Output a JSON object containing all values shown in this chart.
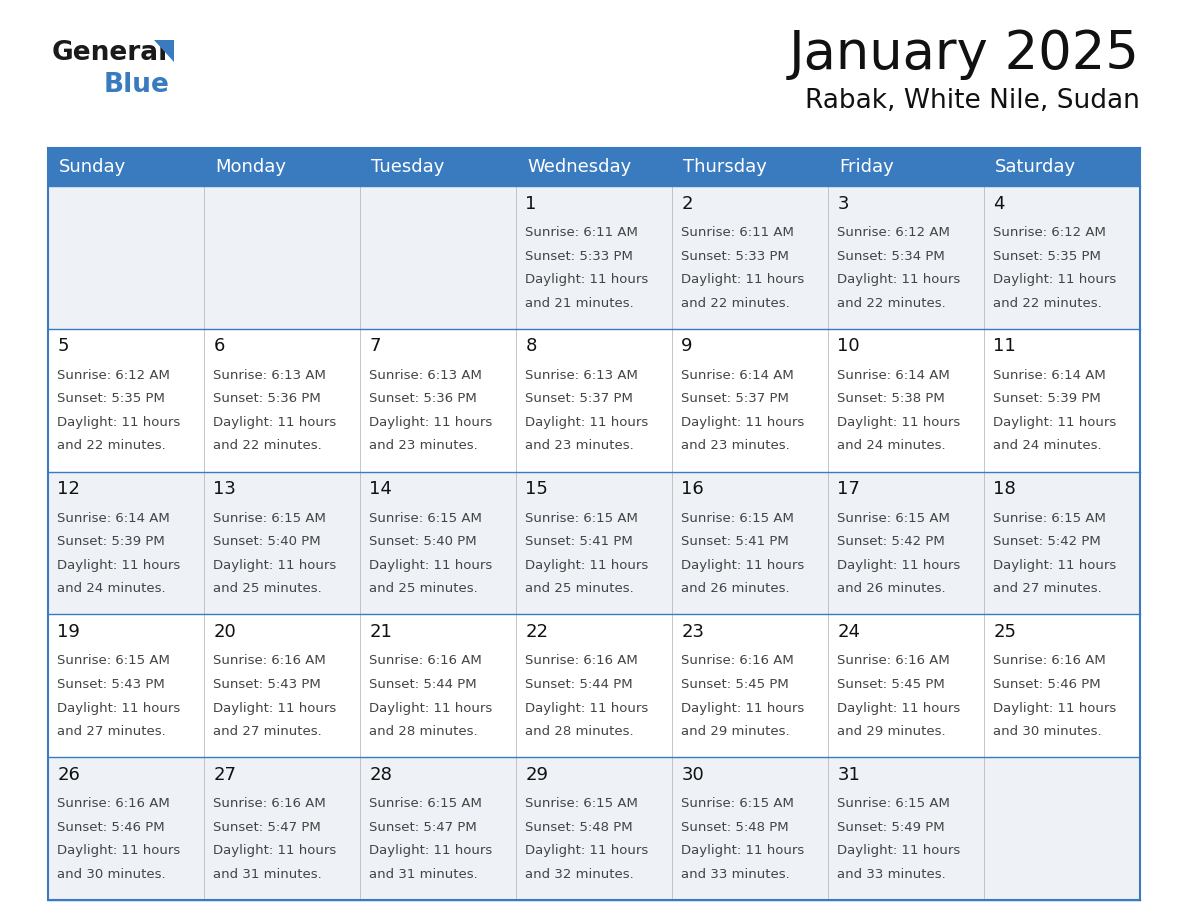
{
  "title": "January 2025",
  "subtitle": "Rabak, White Nile, Sudan",
  "header_bg_color": "#3a7bbf",
  "header_text_color": "#ffffff",
  "cell_bg_light": "#eef2f7",
  "cell_bg_white": "#ffffff",
  "day_headers": [
    "Sunday",
    "Monday",
    "Tuesday",
    "Wednesday",
    "Thursday",
    "Friday",
    "Saturday"
  ],
  "calendar_data": [
    [
      {
        "day": "",
        "sunrise": "",
        "sunset": "",
        "daylight": ""
      },
      {
        "day": "",
        "sunrise": "",
        "sunset": "",
        "daylight": ""
      },
      {
        "day": "",
        "sunrise": "",
        "sunset": "",
        "daylight": ""
      },
      {
        "day": "1",
        "sunrise": "6:11 AM",
        "sunset": "5:33 PM",
        "daylight": "11 hours and 21 minutes."
      },
      {
        "day": "2",
        "sunrise": "6:11 AM",
        "sunset": "5:33 PM",
        "daylight": "11 hours and 22 minutes."
      },
      {
        "day": "3",
        "sunrise": "6:12 AM",
        "sunset": "5:34 PM",
        "daylight": "11 hours and 22 minutes."
      },
      {
        "day": "4",
        "sunrise": "6:12 AM",
        "sunset": "5:35 PM",
        "daylight": "11 hours and 22 minutes."
      }
    ],
    [
      {
        "day": "5",
        "sunrise": "6:12 AM",
        "sunset": "5:35 PM",
        "daylight": "11 hours and 22 minutes."
      },
      {
        "day": "6",
        "sunrise": "6:13 AM",
        "sunset": "5:36 PM",
        "daylight": "11 hours and 22 minutes."
      },
      {
        "day": "7",
        "sunrise": "6:13 AM",
        "sunset": "5:36 PM",
        "daylight": "11 hours and 23 minutes."
      },
      {
        "day": "8",
        "sunrise": "6:13 AM",
        "sunset": "5:37 PM",
        "daylight": "11 hours and 23 minutes."
      },
      {
        "day": "9",
        "sunrise": "6:14 AM",
        "sunset": "5:37 PM",
        "daylight": "11 hours and 23 minutes."
      },
      {
        "day": "10",
        "sunrise": "6:14 AM",
        "sunset": "5:38 PM",
        "daylight": "11 hours and 24 minutes."
      },
      {
        "day": "11",
        "sunrise": "6:14 AM",
        "sunset": "5:39 PM",
        "daylight": "11 hours and 24 minutes."
      }
    ],
    [
      {
        "day": "12",
        "sunrise": "6:14 AM",
        "sunset": "5:39 PM",
        "daylight": "11 hours and 24 minutes."
      },
      {
        "day": "13",
        "sunrise": "6:15 AM",
        "sunset": "5:40 PM",
        "daylight": "11 hours and 25 minutes."
      },
      {
        "day": "14",
        "sunrise": "6:15 AM",
        "sunset": "5:40 PM",
        "daylight": "11 hours and 25 minutes."
      },
      {
        "day": "15",
        "sunrise": "6:15 AM",
        "sunset": "5:41 PM",
        "daylight": "11 hours and 25 minutes."
      },
      {
        "day": "16",
        "sunrise": "6:15 AM",
        "sunset": "5:41 PM",
        "daylight": "11 hours and 26 minutes."
      },
      {
        "day": "17",
        "sunrise": "6:15 AM",
        "sunset": "5:42 PM",
        "daylight": "11 hours and 26 minutes."
      },
      {
        "day": "18",
        "sunrise": "6:15 AM",
        "sunset": "5:42 PM",
        "daylight": "11 hours and 27 minutes."
      }
    ],
    [
      {
        "day": "19",
        "sunrise": "6:15 AM",
        "sunset": "5:43 PM",
        "daylight": "11 hours and 27 minutes."
      },
      {
        "day": "20",
        "sunrise": "6:16 AM",
        "sunset": "5:43 PM",
        "daylight": "11 hours and 27 minutes."
      },
      {
        "day": "21",
        "sunrise": "6:16 AM",
        "sunset": "5:44 PM",
        "daylight": "11 hours and 28 minutes."
      },
      {
        "day": "22",
        "sunrise": "6:16 AM",
        "sunset": "5:44 PM",
        "daylight": "11 hours and 28 minutes."
      },
      {
        "day": "23",
        "sunrise": "6:16 AM",
        "sunset": "5:45 PM",
        "daylight": "11 hours and 29 minutes."
      },
      {
        "day": "24",
        "sunrise": "6:16 AM",
        "sunset": "5:45 PM",
        "daylight": "11 hours and 29 minutes."
      },
      {
        "day": "25",
        "sunrise": "6:16 AM",
        "sunset": "5:46 PM",
        "daylight": "11 hours and 30 minutes."
      }
    ],
    [
      {
        "day": "26",
        "sunrise": "6:16 AM",
        "sunset": "5:46 PM",
        "daylight": "11 hours and 30 minutes."
      },
      {
        "day": "27",
        "sunrise": "6:16 AM",
        "sunset": "5:47 PM",
        "daylight": "11 hours and 31 minutes."
      },
      {
        "day": "28",
        "sunrise": "6:15 AM",
        "sunset": "5:47 PM",
        "daylight": "11 hours and 31 minutes."
      },
      {
        "day": "29",
        "sunrise": "6:15 AM",
        "sunset": "5:48 PM",
        "daylight": "11 hours and 32 minutes."
      },
      {
        "day": "30",
        "sunrise": "6:15 AM",
        "sunset": "5:48 PM",
        "daylight": "11 hours and 33 minutes."
      },
      {
        "day": "31",
        "sunrise": "6:15 AM",
        "sunset": "5:49 PM",
        "daylight": "11 hours and 33 minutes."
      },
      {
        "day": "",
        "sunrise": "",
        "sunset": "",
        "daylight": ""
      }
    ]
  ],
  "border_color": "#3a7bbf",
  "title_fontsize": 38,
  "subtitle_fontsize": 19,
  "header_fontsize": 13,
  "day_num_fontsize": 13,
  "cell_text_fontsize": 9.5
}
